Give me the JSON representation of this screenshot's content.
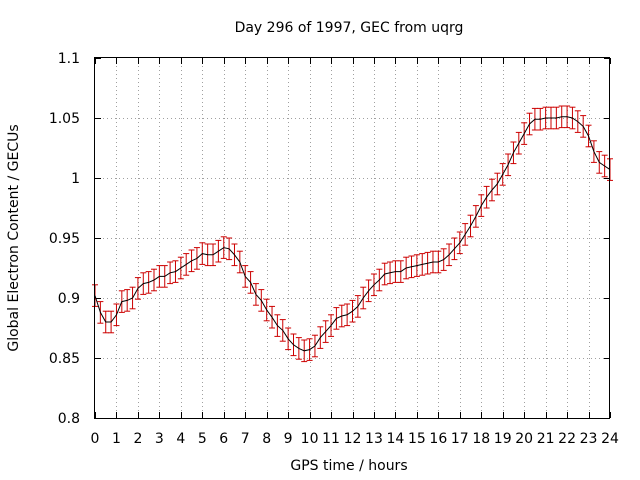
{
  "chart_data": {
    "type": "line",
    "title": "Day 296 of 1997, GEC from uqrg",
    "xlabel": "GPS time / hours",
    "ylabel": "Global Electron Content / GECUs",
    "xlim": [
      0,
      24
    ],
    "ylim": [
      0.8,
      1.1
    ],
    "xticks": [
      "0",
      "1",
      "2",
      "3",
      "4",
      "5",
      "6",
      "7",
      "8",
      "9",
      "10",
      "11",
      "12",
      "13",
      "14",
      "15",
      "16",
      "17",
      "18",
      "19",
      "20",
      "21",
      "22",
      "23",
      "24"
    ],
    "yticks": [
      "0.8",
      "0.85",
      "0.9",
      "0.95",
      "1",
      "1.05",
      "1.1"
    ],
    "grid": true,
    "error": 0.009,
    "series": [
      {
        "x": [
          0,
          0.25,
          0.5,
          0.75,
          1,
          1.25,
          1.5,
          1.75,
          2,
          2.25,
          2.5,
          2.75,
          3,
          3.25,
          3.5,
          3.75,
          4,
          4.25,
          4.5,
          4.75,
          5,
          5.25,
          5.5,
          5.75,
          6,
          6.25,
          6.5,
          6.75,
          7,
          7.25,
          7.5,
          7.75,
          8,
          8.25,
          8.5,
          8.75,
          9,
          9.25,
          9.5,
          9.75,
          10,
          10.25,
          10.5,
          10.75,
          11,
          11.25,
          11.5,
          11.75,
          12,
          12.25,
          12.5,
          12.75,
          13,
          13.25,
          13.5,
          13.75,
          14,
          14.25,
          14.5,
          14.75,
          15,
          15.25,
          15.5,
          15.75,
          16,
          16.25,
          16.5,
          16.75,
          17,
          17.25,
          17.5,
          17.75,
          18,
          18.25,
          18.5,
          18.75,
          19,
          19.25,
          19.5,
          19.75,
          20,
          20.25,
          20.5,
          20.75,
          21,
          21.25,
          21.5,
          21.75,
          22,
          22.25,
          22.5,
          22.75,
          23,
          23.25,
          23.5,
          23.75,
          24
        ],
        "values": [
          0.902,
          0.888,
          0.88,
          0.88,
          0.886,
          0.897,
          0.898,
          0.9,
          0.908,
          0.912,
          0.913,
          0.915,
          0.918,
          0.918,
          0.921,
          0.922,
          0.925,
          0.928,
          0.931,
          0.933,
          0.937,
          0.936,
          0.936,
          0.939,
          0.942,
          0.941,
          0.936,
          0.93,
          0.918,
          0.913,
          0.903,
          0.898,
          0.89,
          0.884,
          0.877,
          0.873,
          0.866,
          0.861,
          0.858,
          0.856,
          0.857,
          0.86,
          0.867,
          0.872,
          0.877,
          0.883,
          0.885,
          0.886,
          0.889,
          0.893,
          0.9,
          0.906,
          0.911,
          0.915,
          0.92,
          0.921,
          0.922,
          0.922,
          0.925,
          0.926,
          0.927,
          0.928,
          0.929,
          0.93,
          0.93,
          0.932,
          0.936,
          0.941,
          0.946,
          0.953,
          0.96,
          0.968,
          0.977,
          0.984,
          0.99,
          0.995,
          1.003,
          1.011,
          1.021,
          1.029,
          1.037,
          1.045,
          1.049,
          1.049,
          1.05,
          1.05,
          1.05,
          1.051,
          1.051,
          1.05,
          1.047,
          1.043,
          1.035,
          1.022,
          1.013,
          1.01,
          1.007
        ]
      }
    ]
  }
}
